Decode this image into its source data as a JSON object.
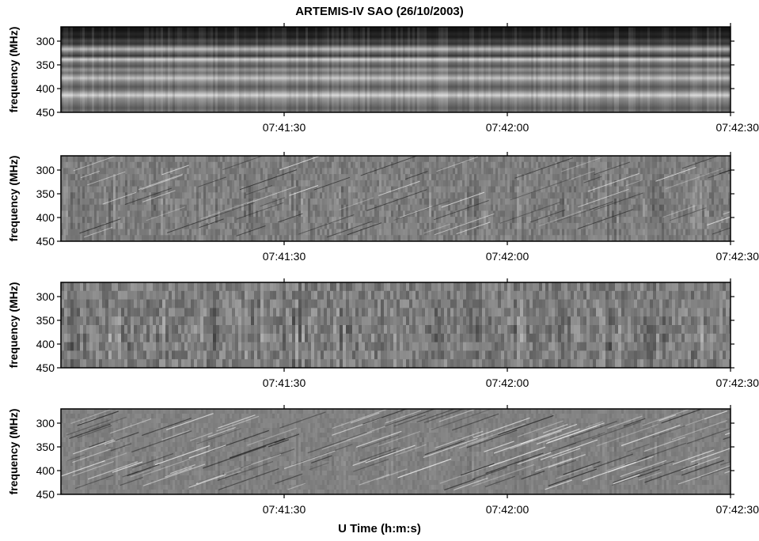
{
  "figure": {
    "title": "ARTEMIS-IV SAO  (26/10/2003)",
    "xlabel": "U Time (h:m:s)"
  },
  "chart_data": [
    {
      "type": "heatmap",
      "panel": "raw dynamic spectrum",
      "ylabel": "frequency (MHz)",
      "ylim": [
        270,
        450
      ],
      "y_inverted": true,
      "yticks": [
        300,
        350,
        400,
        450
      ],
      "xlim": [
        "07:41:00",
        "07:42:30"
      ],
      "xticks": [
        "07:41:30",
        "07:42:00",
        "07:42:30"
      ],
      "colormap": "grayscale",
      "pattern": "horizontal bands"
    },
    {
      "type": "heatmap",
      "panel": "filtered spectrum (fine structure)",
      "ylabel": "frequency (MHz)",
      "ylim": [
        270,
        450
      ],
      "y_inverted": true,
      "yticks": [
        300,
        350,
        400,
        450
      ],
      "xlim": [
        "07:41:00",
        "07:42:30"
      ],
      "xticks": [
        "07:41:30",
        "07:42:00",
        "07:42:30"
      ],
      "colormap": "grayscale",
      "pattern": "vertical pulsations with fine drifting stripes"
    },
    {
      "type": "heatmap",
      "panel": "low-pass filtered spectrum (pulsations)",
      "ylabel": "frequency (MHz)",
      "ylim": [
        270,
        450
      ],
      "y_inverted": true,
      "yticks": [
        300,
        350,
        400,
        450
      ],
      "xlim": [
        "07:41:00",
        "07:42:30"
      ],
      "xticks": [
        "07:41:30",
        "07:42:00",
        "07:42:30"
      ],
      "colormap": "grayscale",
      "pattern": "strong vertical pulsations"
    },
    {
      "type": "heatmap",
      "panel": "high-pass filtered spectrum (fiber bursts)",
      "ylabel": "frequency (MHz)",
      "ylim": [
        270,
        450
      ],
      "y_inverted": true,
      "yticks": [
        300,
        350,
        400,
        450
      ],
      "xlim": [
        "07:41:00",
        "07:42:30"
      ],
      "xticks": [
        "07:41:30",
        "07:42:00",
        "07:42:30"
      ],
      "colormap": "grayscale",
      "pattern": "fine drifting diagonal stripes"
    }
  ]
}
